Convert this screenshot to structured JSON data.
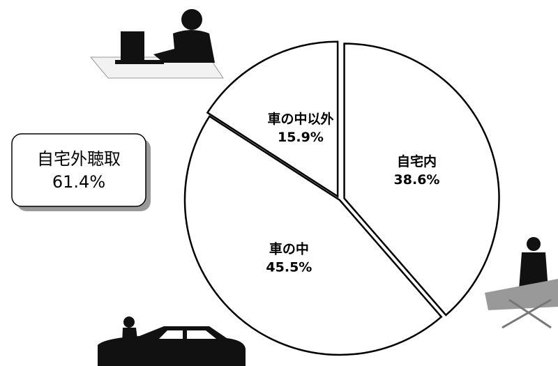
{
  "chart_data": {
    "type": "pie",
    "categories": [
      "自宅内",
      "車の中",
      "車の中以外"
    ],
    "values": [
      38.6,
      45.5,
      15.9
    ],
    "value_labels": [
      "38.6%",
      "45.5%",
      "15.9%"
    ],
    "color": "#ffffff",
    "annotation": {
      "text": "自宅外聴取",
      "value": 61.4,
      "value_label": "61.4%"
    }
  }
}
